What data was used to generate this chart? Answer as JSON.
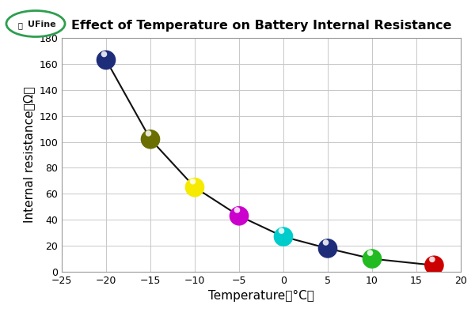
{
  "title": "Effect of Temperature on Battery Internal Resistance",
  "xlabel": "Temperature（°C）",
  "ylabel": "Internal resistance（Ω）",
  "temperatures": [
    -20,
    -15,
    -10,
    -5,
    0,
    5,
    10,
    17
  ],
  "resistances": [
    163,
    102,
    65,
    43,
    27,
    18,
    10,
    5
  ],
  "marker_colors": [
    "#1e2d7a",
    "#6b6e00",
    "#f5ea00",
    "#cc00cc",
    "#00cccc",
    "#1e2d7a",
    "#22bb22",
    "#cc0000"
  ],
  "xlim": [
    -25,
    20
  ],
  "ylim": [
    0,
    180
  ],
  "xticks": [
    -25,
    -20,
    -15,
    -10,
    -5,
    0,
    5,
    10,
    15,
    20
  ],
  "yticks": [
    0,
    20,
    40,
    60,
    80,
    100,
    120,
    140,
    160,
    180
  ],
  "line_color": "#111111",
  "grid_color": "#c8c8c8",
  "bg_color": "#ffffff",
  "title_fontsize": 11.5,
  "axis_label_fontsize": 11,
  "tick_fontsize": 9,
  "marker_size": 120
}
